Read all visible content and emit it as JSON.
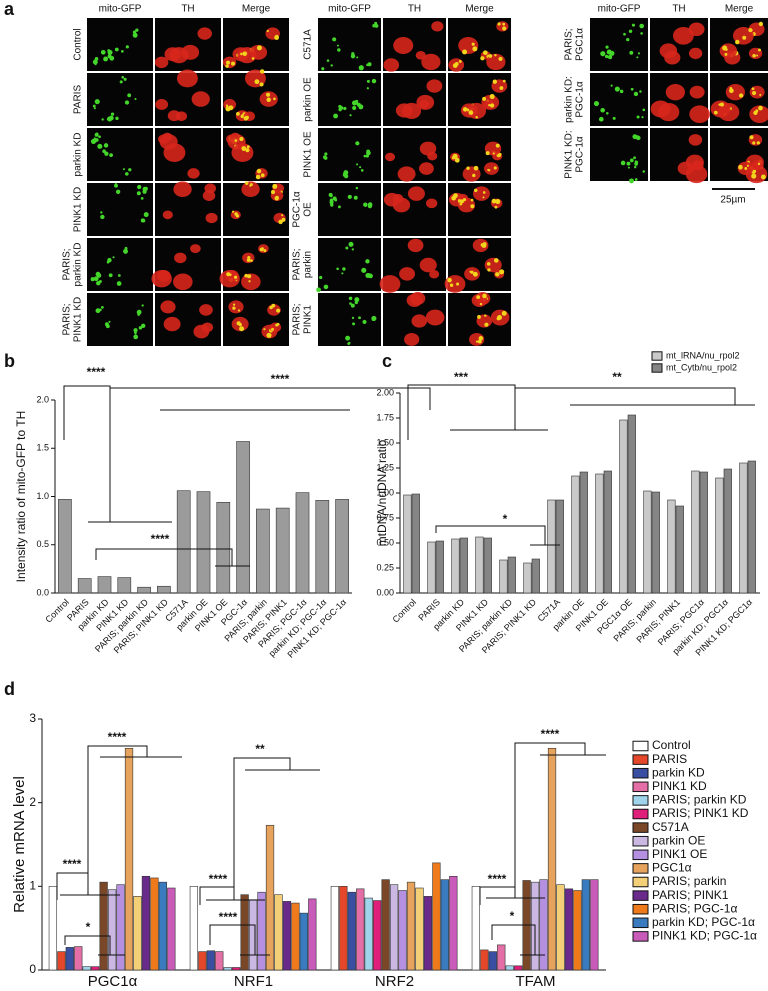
{
  "panel_labels": [
    "a",
    "b",
    "c",
    "d"
  ],
  "panel_a": {
    "groups": [
      {
        "columns": [
          "mito-GFP",
          "TH",
          "Merge"
        ],
        "rows": [
          [
            "Control"
          ],
          [
            "PARIS"
          ],
          [
            "parkin KD"
          ],
          [
            "PINK1 KD"
          ],
          [
            "PARIS;",
            "parkin KD"
          ],
          [
            "PARIS;",
            "PINK1 KD"
          ]
        ]
      },
      {
        "columns": [
          "mito-GFP",
          "TH",
          "Merge"
        ],
        "rows": [
          [
            "C571A"
          ],
          [
            "parkin OE"
          ],
          [
            "PINK1 OE"
          ],
          [
            "PGC-1α",
            "OE"
          ],
          [
            "PARIS;",
            "parkin"
          ],
          [
            "PARIS;",
            "PINK1"
          ]
        ]
      },
      {
        "columns": [
          "mito-GFP",
          "TH",
          "Merge"
        ],
        "rows": [
          [
            "PARIS;",
            "PGC1α"
          ],
          [
            "parkin KD:",
            "PGC-1α"
          ],
          [
            "PINK1 KD:",
            "PGC-1α"
          ]
        ]
      }
    ],
    "scale_bar": "25µm"
  },
  "chart_data": [
    {
      "type": "bar",
      "ylabel": "Intensity ratio of mito-GFP to TH",
      "categories": [
        "Control",
        "PARIS",
        "parkin KD",
        "PINK1 KD",
        "PARIS; parkin KD",
        "PARIS; PINK1 KD",
        "C571A",
        "parkin OE",
        "PINK1 OE",
        "PGC-1α",
        "PARIS; parkin",
        "PARIS; PINK1",
        "PARIS; PGC-1α",
        "parkin KD; PGC-1α",
        "PINK1 KD; PGC-1α"
      ],
      "values": [
        0.97,
        0.15,
        0.17,
        0.16,
        0.06,
        0.07,
        1.06,
        1.05,
        0.94,
        1.57,
        0.87,
        0.88,
        1.04,
        0.96,
        0.97
      ],
      "color": "#9b9b9b",
      "ylim": [
        0,
        2.0
      ],
      "yticks": [
        {
          "value": 0,
          "label": "0.0"
        },
        {
          "value": 0.5,
          "label": "0.5"
        },
        {
          "value": 1.0,
          "label": "1.0"
        },
        {
          "value": 1.5,
          "label": "1.5"
        },
        {
          "value": 2.0,
          "label": "2.0"
        }
      ],
      "annotations": [
        "****",
        "****",
        "****"
      ]
    },
    {
      "type": "bar",
      "ylabel": "mtDNA/nuDNA ratio",
      "categories": [
        "Control",
        "PARIS",
        "parkin KD",
        "PINK1 KD",
        "PARIS; parkin KD",
        "PARIS; PINK1 KD",
        "C571A",
        "parkin OE",
        "PINK1 OE",
        "PGC1α OE",
        "PARIS; parkin",
        "PARIS; PINK1",
        "PARIS; PGC1α",
        "parkin KD; PGC1α",
        "PINK1 KD; PGC1α"
      ],
      "series": [
        {
          "name": "mt_lRNA/nu_rpol2",
          "color": "#c9c9c9",
          "values": [
            0.98,
            0.51,
            0.54,
            0.56,
            0.33,
            0.3,
            0.93,
            1.17,
            1.19,
            1.73,
            1.02,
            0.93,
            1.22,
            1.15,
            1.3
          ]
        },
        {
          "name": "mt_Cytb/nu_rpol2",
          "color": "#858585",
          "values": [
            0.99,
            0.52,
            0.55,
            0.55,
            0.36,
            0.34,
            0.93,
            1.21,
            1.22,
            1.78,
            1.01,
            0.87,
            1.21,
            1.24,
            1.32
          ]
        }
      ],
      "ylim": [
        0,
        2.0
      ],
      "yticks": [
        {
          "value": 0,
          "label": "0.00"
        },
        {
          "value": 0.25,
          "label": "0.25"
        },
        {
          "value": 0.5,
          "label": "0.50"
        },
        {
          "value": 0.75,
          "label": "0.75"
        },
        {
          "value": 1.0,
          "label": "1.00"
        },
        {
          "value": 1.25,
          "label": "1.25"
        },
        {
          "value": 1.5,
          "label": "1.50"
        },
        {
          "value": 1.75,
          "label": "1.75"
        },
        {
          "value": 2.0,
          "label": "2.00"
        }
      ],
      "legend": "top-right",
      "annotations": [
        "***",
        "*",
        "**"
      ]
    },
    {
      "type": "bar",
      "ylabel": "Relative mRNA level",
      "categories": [
        "PGC1α",
        "NRF1",
        "NRF2",
        "TFAM"
      ],
      "series": [
        {
          "name": "Control",
          "color": "#ffffff",
          "values": [
            1.0,
            1.0,
            1.0,
            1.0
          ]
        },
        {
          "name": "PARIS",
          "color": "#e5472b",
          "values": [
            0.22,
            0.22,
            1.0,
            0.24
          ]
        },
        {
          "name": "parkin KD",
          "color": "#3a4ea2",
          "values": [
            0.27,
            0.23,
            0.93,
            0.22
          ]
        },
        {
          "name": "PINK1 KD",
          "color": "#e36fa6",
          "values": [
            0.28,
            0.22,
            0.97,
            0.3
          ]
        },
        {
          "name": "PARIS; parkin KD",
          "color": "#9fd4ea",
          "values": [
            0.04,
            0.03,
            0.86,
            0.05
          ]
        },
        {
          "name": "PARIS; PINK1 KD",
          "color": "#df1f7a",
          "values": [
            0.04,
            0.03,
            0.83,
            0.05
          ]
        },
        {
          "name": "C571A",
          "color": "#7a4829",
          "values": [
            1.05,
            0.9,
            1.08,
            1.07
          ]
        },
        {
          "name": "parkin OE",
          "color": "#cbb8e2",
          "values": [
            0.96,
            0.84,
            1.02,
            1.05
          ]
        },
        {
          "name": "PINK1 OE",
          "color": "#b58fe0",
          "values": [
            1.02,
            0.93,
            0.95,
            1.08
          ]
        },
        {
          "name": "PGC1α",
          "color": "#e6a35e",
          "values": [
            2.65,
            1.73,
            1.05,
            2.65
          ]
        },
        {
          "name": "PARIS; parkin",
          "color": "#f3d078",
          "values": [
            0.88,
            0.9,
            0.98,
            1.02
          ]
        },
        {
          "name": "PARIS; PINK1",
          "color": "#6a2a8c",
          "values": [
            1.12,
            0.82,
            0.88,
            0.97
          ]
        },
        {
          "name": "PARIS; PGC-1α",
          "color": "#ef7a1c",
          "values": [
            1.1,
            0.8,
            1.28,
            0.95
          ]
        },
        {
          "name": "parkin KD; PGC-1α",
          "color": "#3a7bc0",
          "values": [
            1.05,
            0.68,
            1.08,
            1.08
          ]
        },
        {
          "name": "PINK1 KD; PGC-1α",
          "color": "#c95bb9",
          "values": [
            0.98,
            0.85,
            1.12,
            1.08
          ]
        }
      ],
      "ylim": [
        0,
        3
      ],
      "yticks": [
        0,
        1,
        2,
        3
      ],
      "legend": "right",
      "annotations": [
        "****",
        "*",
        "****",
        "****",
        "****",
        "**",
        "****",
        "*",
        "****"
      ]
    }
  ]
}
